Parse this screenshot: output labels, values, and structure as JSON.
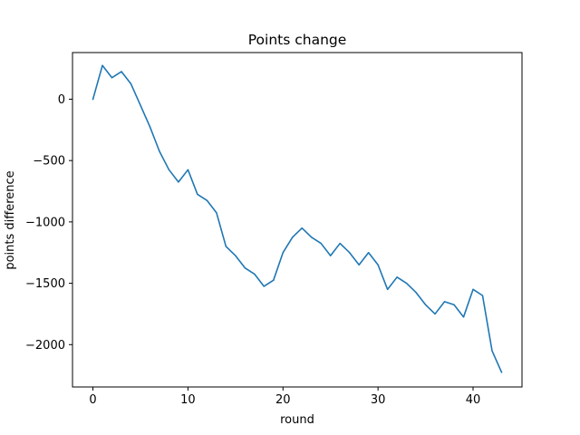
{
  "chart_data": {
    "type": "line",
    "title": "Points change",
    "xlabel": "round",
    "ylabel": "points difference",
    "xlim": [
      -2.15,
      45.15
    ],
    "ylim": [
      -2345,
      380
    ],
    "x_ticks": [
      0,
      10,
      20,
      30,
      40
    ],
    "y_ticks": [
      0,
      -500,
      -1000,
      -1500,
      -2000
    ],
    "y_tick_labels": [
      "0",
      "−500",
      "−1000",
      "−1500",
      "−2000"
    ],
    "grid": false,
    "series": [
      {
        "color": "#1f77b4",
        "x": [
          0,
          1,
          2,
          3,
          4,
          5,
          6,
          7,
          8,
          9,
          10,
          11,
          12,
          13,
          14,
          15,
          16,
          17,
          18,
          19,
          20,
          21,
          22,
          23,
          24,
          25,
          26,
          27,
          28,
          29,
          30,
          31,
          32,
          33,
          34,
          35,
          36,
          37,
          38,
          39,
          40,
          41,
          42,
          43
        ],
        "y": [
          0,
          275,
          175,
          225,
          125,
          -50,
          -225,
          -425,
          -575,
          -675,
          -575,
          -775,
          -825,
          -925,
          -1200,
          -1275,
          -1375,
          -1425,
          -1525,
          -1475,
          -1250,
          -1125,
          -1050,
          -1125,
          -1175,
          -1275,
          -1175,
          -1250,
          -1350,
          -1250,
          -1350,
          -1550,
          -1450,
          -1500,
          -1575,
          -1675,
          -1750,
          -1650,
          -1675,
          -1775,
          -1550,
          -1600,
          -2050,
          -2225
        ]
      }
    ]
  }
}
